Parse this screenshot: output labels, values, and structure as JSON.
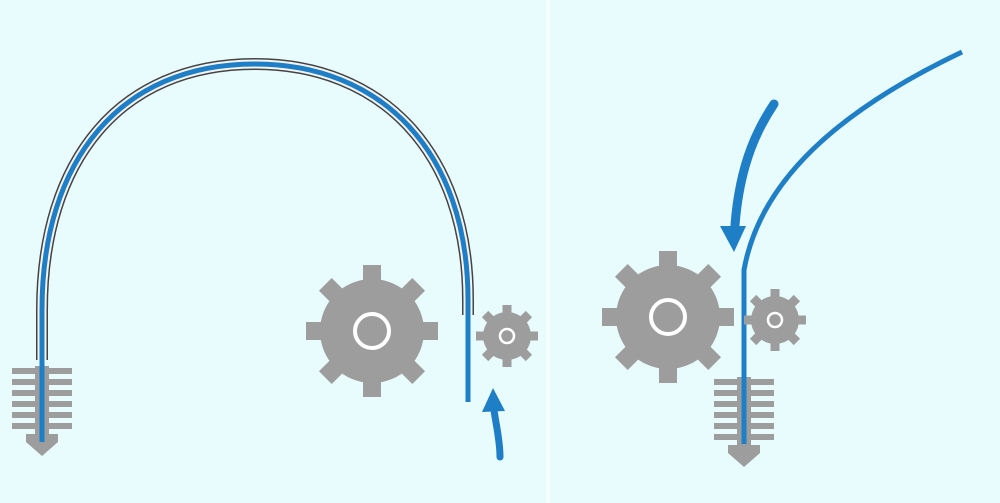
{
  "colors": {
    "background": "#e8fbfd",
    "filament": "#1f7fc6",
    "tube_outline": "#555555",
    "tube_fill": "#f2f2f2",
    "gear": "#9d9d9d",
    "gear_hole": "#ffffff",
    "nozzle": "#9d9d9d",
    "divider": "#ffffff"
  },
  "diagram": {
    "left_panel": {
      "name": "bowden-extruder",
      "parts": [
        "bowden-tube",
        "filament",
        "drive-gear",
        "idler-gear",
        "hotend-nozzle",
        "feed-arrow"
      ]
    },
    "right_panel": {
      "name": "direct-drive-extruder",
      "parts": [
        "filament",
        "drive-gear",
        "idler-gear",
        "hotend-nozzle",
        "feed-arrow"
      ]
    }
  }
}
